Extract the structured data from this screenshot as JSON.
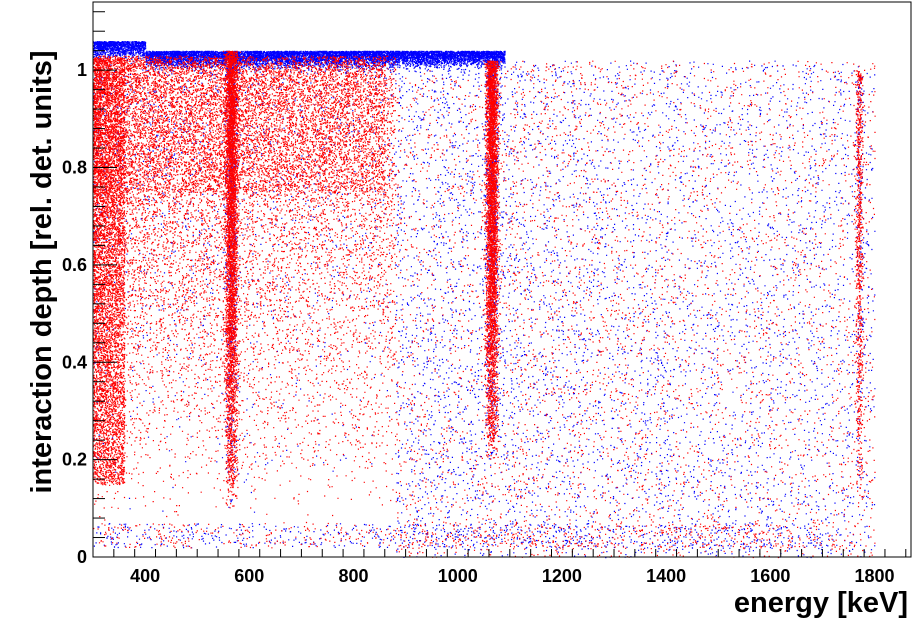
{
  "chart_data": {
    "type": "scatter",
    "title": "",
    "xlabel": "energy [keV]",
    "ylabel": "interaction depth [rel. det. units]",
    "xlim": [
      300,
      1870
    ],
    "ylim": [
      0,
      1.14
    ],
    "x_ticks": [
      400,
      600,
      800,
      1000,
      1200,
      1400,
      1600,
      1800
    ],
    "y_ticks": [
      0,
      0.2,
      0.4,
      0.6,
      0.8,
      1
    ],
    "x_tick_labels": [
      "400",
      "600",
      "800",
      "1000",
      "1200",
      "1400",
      "1600",
      "1800"
    ],
    "y_tick_labels": [
      "0",
      "0.2",
      "0.4",
      "0.6",
      "0.8",
      "1"
    ],
    "grid": false,
    "legend": "none",
    "colors": {
      "series_a": "#0000ff",
      "series_b": "#ff0000",
      "frame": "#000000"
    },
    "features": [
      {
        "kind": "dense_band",
        "color": "#ff0000",
        "energy_range": [
          300,
          880
        ],
        "depth_range": [
          0.05,
          1.03
        ]
      },
      {
        "kind": "vertical_line",
        "color": "#ff0000",
        "energy": 565,
        "depth_range": [
          0.1,
          1.04
        ]
      },
      {
        "kind": "vertical_line",
        "color": "#ff0000",
        "energy": 1065,
        "depth_range": [
          0.2,
          1.02
        ]
      },
      {
        "kind": "top_edge",
        "color": "#0000ff",
        "energy_range": [
          300,
          1090
        ],
        "depth": 1.04
      },
      {
        "kind": "sparse_region",
        "color": "#0000ff",
        "energy_range": [
          1100,
          1800
        ],
        "depth_range": [
          0.0,
          1.02
        ]
      },
      {
        "kind": "vertical_line",
        "color": "#ff0000",
        "energy": 1770,
        "depth_range": [
          0.1,
          1.0
        ]
      }
    ]
  }
}
